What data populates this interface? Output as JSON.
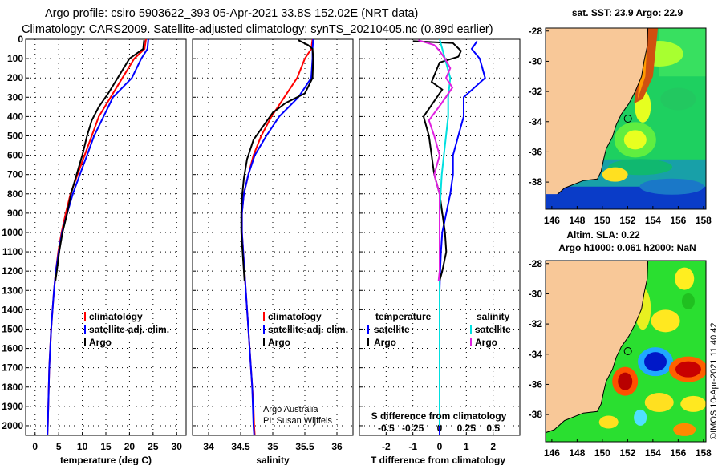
{
  "header": {
    "line1": "Argo profile: csiro 5903622_393 05-Apr-2021 33.8S 152.02E (NRT data)",
    "line2": "Climatology: CARS2009. Satellite-adjusted climatology: synTS_20210405.nc (0.89d earlier)"
  },
  "colors": {
    "argo": "#000000",
    "climatology": "#ff0000",
    "satellite": "#0000ff",
    "s_satellite": "#00e0e0",
    "s_argo": "#e020e0",
    "land": "#f8c898"
  },
  "chart_data": [
    {
      "id": "temperature",
      "type": "line",
      "xlabel": "temperature (deg C)",
      "xlim": [
        -2,
        32
      ],
      "xticks": [
        0,
        5,
        10,
        15,
        20,
        25,
        30
      ],
      "xtick_labels": [
        "0",
        "5",
        "10",
        "15",
        "20",
        "25",
        "30"
      ],
      "ylim": [
        0,
        2050
      ],
      "yticks": [
        0,
        100,
        200,
        300,
        400,
        500,
        600,
        700,
        800,
        900,
        1000,
        1100,
        1200,
        1300,
        1400,
        1500,
        1600,
        1700,
        1800,
        1900,
        2000
      ],
      "y_inverted": true,
      "legend": [
        "climatology",
        "satellite-adj. clim.",
        "Argo"
      ],
      "series": [
        {
          "name": "climatology",
          "color": "#ff0000",
          "points": [
            [
              23.5,
              0
            ],
            [
              23.2,
              50
            ],
            [
              21,
              100
            ],
            [
              18.5,
              200
            ],
            [
              16,
              300
            ],
            [
              13.5,
              400
            ],
            [
              12,
              500
            ],
            [
              10.5,
              600
            ],
            [
              9,
              700
            ],
            [
              7.5,
              800
            ],
            [
              6.5,
              900
            ],
            [
              5.6,
              1000
            ],
            [
              4.9,
              1100
            ],
            [
              4.4,
              1200
            ],
            [
              4.0,
              1300
            ],
            [
              3.7,
              1400
            ],
            [
              3.4,
              1500
            ],
            [
              3.2,
              1600
            ],
            [
              3.0,
              1700
            ],
            [
              2.9,
              1800
            ],
            [
              2.8,
              1900
            ],
            [
              2.7,
              2000
            ],
            [
              2.6,
              2050
            ]
          ]
        },
        {
          "name": "satellite-adj. clim.",
          "color": "#0000ff",
          "points": [
            [
              24,
              0
            ],
            [
              23.8,
              50
            ],
            [
              22.5,
              100
            ],
            [
              20.5,
              200
            ],
            [
              16.5,
              300
            ],
            [
              14.5,
              400
            ],
            [
              12.5,
              500
            ],
            [
              11,
              600
            ],
            [
              9.5,
              700
            ],
            [
              8,
              800
            ],
            [
              6.8,
              900
            ],
            [
              5.7,
              1000
            ],
            [
              5,
              1100
            ],
            [
              4.4,
              1200
            ],
            [
              4,
              1300
            ],
            [
              3.7,
              1400
            ],
            [
              3.4,
              1500
            ],
            [
              3.2,
              1600
            ],
            [
              3,
              1700
            ],
            [
              2.9,
              1800
            ],
            [
              2.8,
              1900
            ],
            [
              2.7,
              2000
            ],
            [
              2.6,
              2050
            ]
          ]
        },
        {
          "name": "Argo",
          "color": "#000000",
          "points": [
            [
              23.1,
              5
            ],
            [
              22.9,
              50
            ],
            [
              20,
              100
            ],
            [
              17.5,
              200
            ],
            [
              15.5,
              280
            ],
            [
              13.5,
              350
            ],
            [
              12,
              420
            ],
            [
              11,
              500
            ],
            [
              10,
              600
            ],
            [
              8.8,
              700
            ],
            [
              7.6,
              800
            ],
            [
              6.8,
              900
            ],
            [
              5.8,
              1000
            ],
            [
              5.1,
              1100
            ],
            [
              4.6,
              1200
            ],
            [
              4.3,
              1250
            ]
          ]
        }
      ]
    },
    {
      "id": "salinity",
      "type": "line",
      "xlabel": "salinity",
      "xlim": [
        33.75,
        36.25
      ],
      "xticks": [
        34,
        34.5,
        35,
        35.5,
        36
      ],
      "xtick_labels": [
        "34",
        "34.5",
        "35",
        "35.5",
        "36"
      ],
      "ylim": [
        0,
        2050
      ],
      "y_inverted": true,
      "legend": [
        "climatology",
        "satellite-adj. clim.",
        "Argo"
      ],
      "credit": [
        "Argo Australia",
        "PI: Susan Wijffels"
      ],
      "series": [
        {
          "name": "climatology",
          "color": "#ff0000",
          "points": [
            [
              35.62,
              0
            ],
            [
              35.6,
              50
            ],
            [
              35.5,
              100
            ],
            [
              35.38,
              200
            ],
            [
              35.18,
              300
            ],
            [
              34.98,
              400
            ],
            [
              34.82,
              500
            ],
            [
              34.7,
              600
            ],
            [
              34.62,
              700
            ],
            [
              34.55,
              800
            ],
            [
              34.52,
              900
            ],
            [
              34.52,
              1000
            ],
            [
              34.54,
              1100
            ],
            [
              34.56,
              1200
            ],
            [
              34.58,
              1300
            ],
            [
              34.6,
              1400
            ],
            [
              34.62,
              1500
            ],
            [
              34.64,
              1600
            ],
            [
              34.66,
              1700
            ],
            [
              34.68,
              1800
            ],
            [
              34.7,
              1900
            ],
            [
              34.71,
              2000
            ],
            [
              34.72,
              2050
            ]
          ]
        },
        {
          "name": "satellite-adj. clim.",
          "color": "#0000ff",
          "points": [
            [
              35.63,
              0
            ],
            [
              35.62,
              50
            ],
            [
              35.62,
              100
            ],
            [
              35.6,
              200
            ],
            [
              35.4,
              300
            ],
            [
              35.1,
              400
            ],
            [
              34.9,
              500
            ],
            [
              34.72,
              600
            ],
            [
              34.62,
              700
            ],
            [
              34.55,
              800
            ],
            [
              34.52,
              900
            ],
            [
              34.52,
              1000
            ],
            [
              34.54,
              1100
            ],
            [
              34.56,
              1200
            ],
            [
              34.58,
              1300
            ],
            [
              34.6,
              1400
            ],
            [
              34.62,
              1500
            ],
            [
              34.64,
              1600
            ],
            [
              34.66,
              1700
            ],
            [
              34.68,
              1800
            ],
            [
              34.69,
              1900
            ],
            [
              34.7,
              2000
            ],
            [
              34.71,
              2050
            ]
          ]
        },
        {
          "name": "Argo",
          "color": "#000000",
          "points": [
            [
              35.4,
              5
            ],
            [
              35.55,
              30
            ],
            [
              35.62,
              50
            ],
            [
              35.63,
              100
            ],
            [
              35.62,
              200
            ],
            [
              35.5,
              280
            ],
            [
              35.2,
              330
            ],
            [
              35,
              380
            ],
            [
              34.85,
              450
            ],
            [
              34.7,
              520
            ],
            [
              34.6,
              620
            ],
            [
              34.55,
              720
            ],
            [
              34.52,
              820
            ],
            [
              34.51,
              900
            ],
            [
              34.51,
              1000
            ],
            [
              34.53,
              1100
            ],
            [
              34.55,
              1200
            ],
            [
              34.56,
              1250
            ]
          ]
        }
      ]
    },
    {
      "id": "difference",
      "type": "line",
      "xlabel": "T difference from climatology",
      "top_axis_label": "S difference from climatology",
      "xlim": [
        -3,
        3
      ],
      "xticks": [
        -2,
        -1,
        0,
        1,
        2
      ],
      "xtick_labels": [
        "-2",
        "-1",
        "0",
        "1",
        "2"
      ],
      "s_xticks": [
        -0.5,
        -0.25,
        0,
        0.25,
        0.5
      ],
      "s_xtick_labels": [
        "-0.5",
        "-0.25",
        "0",
        "0.25",
        "0.5"
      ],
      "ylim": [
        0,
        2050
      ],
      "y_inverted": true,
      "legend_groups": [
        {
          "title": "temperature",
          "items": [
            "satellite",
            "Argo"
          ]
        },
        {
          "title": "salinity",
          "items": [
            "satellite",
            "Argo"
          ]
        }
      ],
      "series": [
        {
          "name": "temperature satellite",
          "color": "#0000ff",
          "points": [
            [
              1.4,
              10
            ],
            [
              1.2,
              50
            ],
            [
              1.5,
              100
            ],
            [
              1.7,
              200
            ],
            [
              0.9,
              300
            ],
            [
              0.9,
              400
            ],
            [
              0.7,
              500
            ],
            [
              0.5,
              600
            ],
            [
              0.5,
              700
            ],
            [
              0.4,
              800
            ],
            [
              0.25,
              900
            ],
            [
              0.1,
              1000
            ],
            [
              0.05,
              1100
            ],
            [
              0.02,
              1200
            ],
            [
              0,
              1300
            ],
            [
              0,
              1400
            ],
            [
              0,
              1500
            ],
            [
              0,
              1600
            ],
            [
              0,
              1700
            ],
            [
              0,
              1800
            ],
            [
              0,
              1900
            ],
            [
              0,
              2000
            ],
            [
              0,
              2050
            ]
          ]
        },
        {
          "name": "temperature Argo",
          "color": "#000000",
          "points": [
            [
              -1.0,
              10
            ],
            [
              0.5,
              20
            ],
            [
              0.8,
              60
            ],
            [
              0.7,
              90
            ],
            [
              0.0,
              120
            ],
            [
              -0.3,
              220
            ],
            [
              0.1,
              260
            ],
            [
              -0.6,
              400
            ],
            [
              -0.4,
              500
            ],
            [
              -0.2,
              700
            ],
            [
              0.0,
              800
            ],
            [
              0.2,
              1000
            ],
            [
              0.25,
              1100
            ],
            [
              0.1,
              1200
            ],
            [
              0.0,
              1250
            ]
          ]
        },
        {
          "name": "salinity satellite",
          "color": "#00e0e0",
          "points": [
            [
              0.0,
              0
            ],
            [
              0.05,
              100
            ],
            [
              0.1,
              200
            ],
            [
              0.08,
              300
            ],
            [
              0.08,
              400
            ],
            [
              0.06,
              500
            ],
            [
              0.04,
              600
            ],
            [
              0.02,
              700
            ],
            [
              0.01,
              800
            ],
            [
              0,
              900
            ],
            [
              0,
              1000
            ],
            [
              0,
              1100
            ],
            [
              0,
              1200
            ],
            [
              0,
              1300
            ],
            [
              0,
              1400
            ],
            [
              0,
              1500
            ],
            [
              0,
              1600
            ],
            [
              0,
              1700
            ],
            [
              0,
              1800
            ],
            [
              0,
              1900
            ],
            [
              0,
              2000
            ]
          ]
        },
        {
          "name": "salinity Argo",
          "color": "#e020e0",
          "points": [
            [
              -0.2,
              5
            ],
            [
              -0.05,
              30
            ],
            [
              0.0,
              60
            ],
            [
              0.05,
              100
            ],
            [
              0.1,
              150
            ],
            [
              0.06,
              200
            ],
            [
              0.12,
              250
            ],
            [
              0.02,
              330
            ],
            [
              -0.1,
              420
            ],
            [
              -0.05,
              500
            ],
            [
              0.0,
              600
            ],
            [
              -0.05,
              700
            ],
            [
              0.0,
              800
            ],
            [
              0.0,
              900
            ],
            [
              0.0,
              1000
            ],
            [
              0.0,
              1100
            ],
            [
              0.0,
              1200
            ],
            [
              -0.01,
              1250
            ]
          ]
        }
      ]
    }
  ],
  "map_top": {
    "title": "sat. SST: 23.9 Argo: 22.9",
    "xticks": [
      "146",
      "148",
      "150",
      "152",
      "154",
      "156",
      "158"
    ],
    "yticks": [
      "-28",
      "-30",
      "-32",
      "-34",
      "-36",
      "-38"
    ],
    "xlim": [
      145.5,
      158.2
    ],
    "ylim": [
      -39.8,
      -27.8
    ],
    "marker": [
      152.02,
      -33.8
    ]
  },
  "map_bottom": {
    "title_line1": "Altim. SLA: 0.22",
    "title_line2": "Argo h1000: 0.061 h2000: NaN",
    "xticks": [
      "146",
      "148",
      "150",
      "152",
      "154",
      "156",
      "158"
    ],
    "yticks": [
      "-28",
      "-30",
      "-32",
      "-34",
      "-36",
      "-38"
    ],
    "xlim": [
      145.5,
      158.2
    ],
    "ylim": [
      -39.8,
      -27.8
    ],
    "marker": [
      152.02,
      -33.8
    ]
  },
  "footer": {
    "stamp": "©IMOS 10-Apr-2021 11:40:42"
  }
}
